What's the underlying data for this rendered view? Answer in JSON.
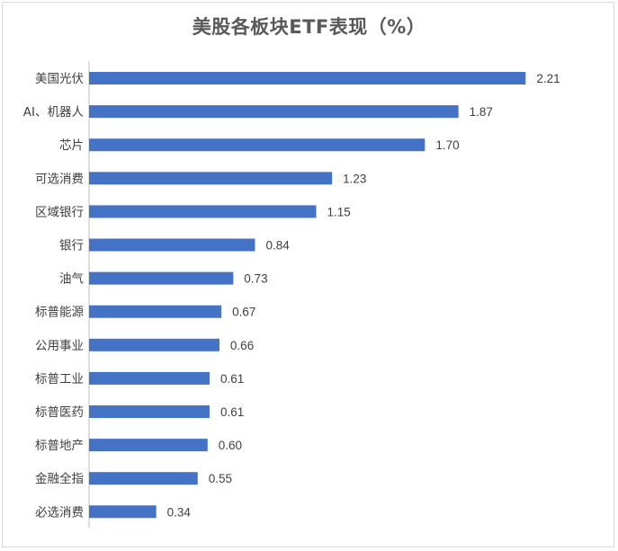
{
  "chart_data": {
    "type": "bar",
    "orientation": "horizontal",
    "title": "美股各板块ETF表现（%）",
    "categories": [
      "美国光伏",
      "AI、机器人",
      "芯片",
      "可选消费",
      "区域银行",
      "银行",
      "油气",
      "标普能源",
      "公用事业",
      "标普工业",
      "标普医药",
      "标普地产",
      "金融全指",
      "必选消费"
    ],
    "values": [
      2.21,
      1.87,
      1.7,
      1.23,
      1.15,
      0.84,
      0.73,
      0.67,
      0.66,
      0.61,
      0.61,
      0.6,
      0.55,
      0.34
    ],
    "value_labels": [
      "2.21",
      "1.87",
      "1.70",
      "1.23",
      "1.15",
      "0.84",
      "0.73",
      "0.67",
      "0.66",
      "0.61",
      "0.61",
      "0.60",
      "0.55",
      "0.34"
    ],
    "xlim": [
      0,
      2.5
    ],
    "grid": false,
    "legend": "none",
    "bar_color": "#4472c4"
  }
}
